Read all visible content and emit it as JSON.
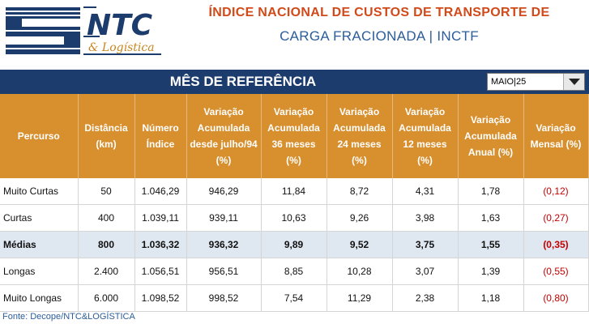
{
  "header": {
    "logo_text": "NTC",
    "logo_subtext": "& Logística",
    "title_line1": "ÍNDICE NACIONAL DE CUSTOS DE TRANSPORTE DE",
    "title_line2": "CARGA FRACIONADA | INCTF"
  },
  "reference": {
    "label": "MÊS DE REFERÊNCIA",
    "selected": "MAIO|25"
  },
  "table": {
    "columns": [
      "Percurso",
      "Distância (km)",
      "Número Índice",
      "Variação Acumulada desde julho/94 (%)",
      "Variação Acumulada 36 meses (%)",
      "Variação Acumulada 24 meses (%)",
      "Variação Acumulada 12 meses (%)",
      "Variação Acumulada Anual (%)",
      "Variação Mensal (%)"
    ],
    "rows": [
      [
        "Muito Curtas",
        "50",
        "1.046,29",
        "946,29",
        "11,84",
        "8,72",
        "4,31",
        "1,78",
        "(0,12)"
      ],
      [
        "Curtas",
        "400",
        "1.039,11",
        "939,11",
        "10,63",
        "9,26",
        "3,98",
        "1,63",
        "(0,27)"
      ],
      [
        "Médias",
        "800",
        "1.036,32",
        "936,32",
        "9,89",
        "9,52",
        "3,75",
        "1,55",
        "(0,35)"
      ],
      [
        "Longas",
        "2.400",
        "1.056,51",
        "956,51",
        "8,85",
        "10,28",
        "3,07",
        "1,39",
        "(0,55)"
      ],
      [
        "Muito Longas",
        "6.000",
        "1.098,52",
        "998,52",
        "7,54",
        "11,29",
        "2,38",
        "1,18",
        "(0,80)"
      ]
    ]
  },
  "footer": {
    "source": "Fonte: Decope/NTC&LOGÍSTICA"
  },
  "colors": {
    "brand_blue": "#1d3c6e",
    "header_orange": "#d88f2d",
    "title_orange": "#d04a1a",
    "negative_red": "#c40000",
    "highlight_row": "#dfe7f1"
  }
}
